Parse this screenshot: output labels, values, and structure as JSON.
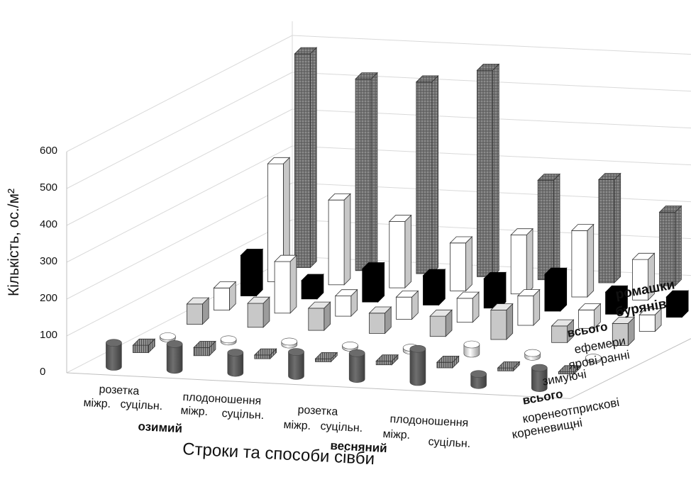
{
  "chart_data": {
    "type": "bar",
    "variant": "3d-column",
    "ylabel": "Кількість, ос./м²",
    "xlabel": "Строки та способи сівби",
    "ylim": [
      0,
      600
    ],
    "yticks": [
      "0",
      "100",
      "200",
      "300",
      "400",
      "500",
      "600"
    ],
    "groups": [
      "озимий",
      "весняний"
    ],
    "categories": [
      {
        "line1": "розетка",
        "line2": "міжр."
      },
      {
        "line1": "",
        "line2": "суцільн."
      },
      {
        "line1": "плодоношення",
        "line2": "міжр."
      },
      {
        "line1": "",
        "line2": "суцільн."
      },
      {
        "line1": "розетка",
        "line2": "міжр."
      },
      {
        "line1": "",
        "line2": "суцільн."
      },
      {
        "line1": "плодоношення",
        "line2": "міжр."
      },
      {
        "line1": "",
        "line2": "суцільн."
      }
    ],
    "series_labels": [
      [
        "ромашки",
        "бурянів"
      ],
      [
        "всього"
      ],
      [
        "ефемери"
      ],
      [
        "ярові ранні"
      ],
      [
        "зимуючі"
      ],
      [
        "всього"
      ],
      [
        "коренеотприскові"
      ],
      [
        "кореневищні"
      ]
    ],
    "series_colors": [
      "#595959",
      "#9a9a9a",
      "#d9d9d9",
      "#c8c8c8",
      "#ffffff",
      "#000000",
      "#ffffff",
      "#8c8c8c"
    ],
    "series_fills": [
      "solid",
      "vstripe",
      "solid",
      "solid",
      "solid",
      "solid",
      "solid",
      "plaid"
    ],
    "series_shapes": [
      "cylinder",
      "box",
      "cylinder",
      "box",
      "box",
      "box",
      "box",
      "box"
    ],
    "series": [
      {
        "values": [
          65,
          70,
          55,
          65,
          70,
          90,
          30,
          55
        ]
      },
      {
        "values": [
          20,
          22,
          10,
          8,
          10,
          15,
          8,
          5
        ]
      },
      {
        "values": [
          5,
          2,
          8,
          5,
          8,
          25,
          10,
          5
        ]
      },
      {
        "values": [
          55,
          65,
          60,
          55,
          55,
          80,
          45,
          60
        ]
      },
      {
        "values": [
          60,
          140,
          55,
          60,
          65,
          80,
          50,
          45
        ]
      },
      {
        "values": [
          110,
          50,
          90,
          80,
          80,
          100,
          60,
          55
        ]
      },
      {
        "values": [
          320,
          230,
          180,
          130,
          160,
          180,
          110,
          110
        ]
      },
      {
        "values": [
          580,
          520,
          520,
          560,
          270,
          280,
          200,
          370
        ]
      }
    ]
  }
}
